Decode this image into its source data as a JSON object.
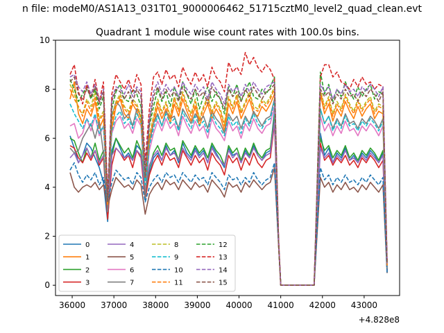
{
  "figure": {
    "suptitle": "n file: modeM0/AS1A13_031T01_9000006462_51715cztM0_level2_quad_clean.evt"
  },
  "chart_data": {
    "type": "line",
    "title": "Quadrant 1 module wise count rates with 100.0s bins.",
    "xlabel": "",
    "ylabel": "",
    "x_offset_label": "+4.828e8",
    "xlim": [
      35600,
      43850
    ],
    "ylim": [
      -0.42,
      10
    ],
    "x_ticks": [
      36000,
      37000,
      38000,
      39000,
      40000,
      41000,
      42000,
      43000
    ],
    "x_tick_labels": [
      "36000",
      "37000",
      "38000",
      "39000",
      "40000",
      "41000",
      "42000",
      "43000"
    ],
    "y_ticks": [
      0,
      2,
      4,
      6,
      8,
      10
    ],
    "y_tick_labels": [
      "0",
      "2",
      "4",
      "6",
      "8",
      "10"
    ],
    "grid": false,
    "legend": {
      "placement": "lower-left",
      "columns": 4
    },
    "x_start": 35950,
    "x_step": 100,
    "gap": {
      "drop_x": 41000,
      "resume_x": 41850,
      "level": 0
    },
    "series": [
      {
        "name": "0",
        "color": "#1f77b4",
        "dash": "solid",
        "seg1": [
          6.1,
          5.6,
          5.0,
          5.3,
          5.8,
          5.6,
          5.2,
          4.8,
          4.2,
          2.6,
          5.5,
          6.0,
          5.6,
          5.2,
          5.4,
          5.1,
          5.7,
          5.5,
          3.6,
          4.6,
          5.2,
          5.4,
          5.1,
          5.7,
          5.3,
          5.5,
          5.0,
          5.8,
          5.4,
          5.2,
          5.6,
          5.3,
          5.5,
          5.0,
          5.7,
          5.4,
          5.1,
          4.8,
          5.6,
          5.3,
          5.4,
          5.0,
          5.5,
          5.2,
          5.7,
          5.3,
          5.1,
          5.4,
          5.5,
          7.1,
          1.8
        ],
        "seg2": [
          6.2,
          5.3,
          5.6,
          5.0,
          5.4,
          5.2,
          5.6,
          5.1,
          5.3,
          5.0,
          5.4,
          5.2,
          5.5,
          5.3,
          5.0,
          5.4,
          0.5
        ]
      },
      {
        "name": "1",
        "color": "#ff7f0e",
        "dash": "solid",
        "seg1": [
          7.6,
          8.3,
          7.0,
          6.6,
          7.2,
          6.9,
          7.5,
          6.4,
          6.8,
          3.2,
          6.4,
          7.3,
          7.6,
          7.0,
          6.8,
          7.4,
          7.1,
          6.6,
          4.3,
          5.8,
          6.6,
          7.3,
          6.8,
          7.2,
          6.6,
          7.4,
          6.9,
          7.6,
          7.1,
          6.7,
          7.3,
          6.5,
          7.0,
          7.4,
          6.8,
          7.2,
          6.9,
          6.3,
          7.4,
          7.0,
          7.5,
          6.8,
          7.2,
          7.6,
          7.0,
          6.9,
          7.3,
          7.1,
          7.4,
          7.8,
          1.6
        ],
        "seg2": [
          7.8,
          7.0,
          7.4,
          6.7,
          7.2,
          6.9,
          7.5,
          7.1,
          6.8,
          7.3,
          6.9,
          7.2,
          7.4,
          6.8,
          7.1,
          7.0,
          0.8
        ]
      },
      {
        "name": "2",
        "color": "#2ca02c",
        "dash": "solid",
        "seg1": [
          6.0,
          5.9,
          5.4,
          5.0,
          5.6,
          5.2,
          5.8,
          5.1,
          5.5,
          2.7,
          5.3,
          6.0,
          5.7,
          5.4,
          5.6,
          5.2,
          5.9,
          5.5,
          3.7,
          4.8,
          5.4,
          5.7,
          5.3,
          5.8,
          5.5,
          5.6,
          5.1,
          5.9,
          5.6,
          5.3,
          5.7,
          5.4,
          5.6,
          5.2,
          5.8,
          5.5,
          5.3,
          4.9,
          5.7,
          5.4,
          5.6,
          5.1,
          5.6,
          5.3,
          5.8,
          5.4,
          5.2,
          5.5,
          5.6,
          6.9,
          1.7
        ],
        "seg2": [
          6.0,
          5.5,
          5.7,
          5.2,
          5.5,
          5.3,
          5.7,
          5.2,
          5.4,
          5.1,
          5.5,
          5.3,
          5.6,
          5.4,
          5.1,
          5.5,
          0.6
        ]
      },
      {
        "name": "3",
        "color": "#d62728",
        "dash": "solid",
        "seg1": [
          5.7,
          5.6,
          5.2,
          5.0,
          5.4,
          5.1,
          5.5,
          4.9,
          5.2,
          2.7,
          4.9,
          5.6,
          5.4,
          5.1,
          5.3,
          4.8,
          5.5,
          5.2,
          3.5,
          4.5,
          5.0,
          5.3,
          4.9,
          5.4,
          5.1,
          5.2,
          4.8,
          5.5,
          5.2,
          4.9,
          5.3,
          5.0,
          5.2,
          4.7,
          5.4,
          5.1,
          4.9,
          4.5,
          5.3,
          5.0,
          5.2,
          4.7,
          5.2,
          4.9,
          5.4,
          5.0,
          4.8,
          5.1,
          5.2,
          6.6,
          1.7
        ],
        "seg2": [
          5.8,
          5.1,
          5.3,
          4.9,
          5.2,
          5.0,
          5.3,
          4.9,
          5.1,
          4.8,
          5.2,
          5.0,
          5.3,
          5.1,
          4.8,
          5.1,
          0.6
        ]
      },
      {
        "name": "4",
        "color": "#9467bd",
        "dash": "solid",
        "seg1": [
          5.2,
          5.4,
          5.0,
          5.3,
          5.6,
          5.2,
          5.5,
          5.0,
          5.3,
          3.0,
          5.3,
          5.6,
          5.4,
          5.2,
          5.3,
          5.1,
          5.5,
          5.3,
          3.8,
          4.9,
          5.3,
          5.5,
          5.1,
          5.6,
          5.3,
          5.4,
          5.1,
          5.6,
          5.3,
          5.1,
          5.5,
          5.2,
          5.4,
          5.0,
          5.6,
          5.3,
          5.1,
          4.9,
          5.5,
          5.2,
          5.4,
          5.0,
          5.4,
          5.2,
          5.6,
          5.3,
          5.1,
          5.3,
          5.4,
          6.7,
          1.7
        ],
        "seg2": [
          5.6,
          5.2,
          5.4,
          5.0,
          5.3,
          5.1,
          5.5,
          5.1,
          5.2,
          5.0,
          5.3,
          5.1,
          5.4,
          5.2,
          5.0,
          5.3,
          0.6
        ]
      },
      {
        "name": "5",
        "color": "#8c564b",
        "dash": "solid",
        "seg1": [
          4.6,
          4.0,
          3.8,
          4.0,
          4.1,
          4.0,
          4.2,
          3.9,
          4.1,
          3.2,
          3.9,
          4.4,
          4.2,
          4.0,
          4.1,
          3.9,
          4.3,
          4.1,
          2.9,
          3.7,
          4.0,
          4.2,
          3.9,
          4.3,
          4.1,
          4.2,
          3.9,
          4.3,
          4.1,
          3.9,
          4.2,
          4.0,
          4.1,
          3.8,
          4.3,
          4.1,
          3.9,
          3.6,
          4.2,
          4.0,
          4.1,
          3.8,
          4.2,
          4.0,
          4.3,
          4.1,
          3.9,
          4.1,
          4.2,
          4.8,
          1.6
        ],
        "seg2": [
          4.4,
          4.0,
          4.2,
          3.8,
          4.1,
          3.9,
          4.2,
          3.9,
          4.0,
          3.8,
          4.1,
          3.9,
          4.2,
          4.0,
          3.8,
          4.1,
          0.5
        ]
      },
      {
        "name": "6",
        "color": "#e377c2",
        "dash": "solid",
        "seg1": [
          6.5,
          6.6,
          6.0,
          6.2,
          6.8,
          6.3,
          6.9,
          6.1,
          6.5,
          3.6,
          6.2,
          6.7,
          6.9,
          6.4,
          6.6,
          6.2,
          6.8,
          6.5,
          3.8,
          5.5,
          6.2,
          6.7,
          6.3,
          6.8,
          6.4,
          6.6,
          6.1,
          6.9,
          6.5,
          6.2,
          6.7,
          6.3,
          6.5,
          6.0,
          6.8,
          6.4,
          6.2,
          5.9,
          6.7,
          6.3,
          6.5,
          6.0,
          6.6,
          6.3,
          6.8,
          6.4,
          6.2,
          6.5,
          6.6,
          7.3,
          1.7
        ],
        "seg2": [
          6.9,
          6.3,
          6.6,
          6.1,
          6.5,
          6.2,
          6.7,
          6.3,
          6.4,
          6.1,
          6.5,
          6.3,
          6.6,
          6.4,
          6.1,
          6.5,
          0.7
        ]
      },
      {
        "name": "7",
        "color": "#7f7f7f",
        "dash": "solid",
        "seg1": [
          5.6,
          5.4,
          5.5,
          6.0,
          6.3,
          6.6,
          6.0,
          6.7,
          5.4,
          3.0,
          6.9,
          7.5,
          7.3,
          6.8,
          7.0,
          6.5,
          7.2,
          6.9,
          3.5,
          5.9,
          6.6,
          7.0,
          6.5,
          7.1,
          6.8,
          6.9,
          6.4,
          7.2,
          6.9,
          6.6,
          7.0,
          6.7,
          6.9,
          6.4,
          7.1,
          6.8,
          6.6,
          6.2,
          7.0,
          6.7,
          6.9,
          6.4,
          6.9,
          6.6,
          7.1,
          6.8,
          6.5,
          6.8,
          6.9,
          7.6,
          1.7
        ],
        "seg2": [
          7.2,
          6.6,
          6.9,
          6.4,
          6.8,
          6.5,
          7.0,
          6.6,
          6.7,
          6.4,
          6.8,
          6.6,
          6.9,
          6.7,
          6.4,
          6.8,
          0.7
        ]
      },
      {
        "name": "8",
        "color": "#bcbd22",
        "dash": "dashed",
        "seg1": [
          8.2,
          7.8,
          7.2,
          7.0,
          7.6,
          7.3,
          7.9,
          6.8,
          7.1,
          3.3,
          6.8,
          7.5,
          7.8,
          7.3,
          7.1,
          7.6,
          7.4,
          6.9,
          4.4,
          6.1,
          6.9,
          7.6,
          7.1,
          7.5,
          6.9,
          7.7,
          7.2,
          7.9,
          7.4,
          7.0,
          7.6,
          6.8,
          7.3,
          7.7,
          7.1,
          7.5,
          7.2,
          6.6,
          7.7,
          7.3,
          7.8,
          7.1,
          7.5,
          7.9,
          7.3,
          7.2,
          7.6,
          7.4,
          7.7,
          8.1,
          1.6
        ],
        "seg2": [
          8.0,
          7.3,
          7.7,
          7.0,
          7.5,
          7.2,
          7.8,
          7.4,
          7.1,
          7.6,
          7.2,
          7.5,
          7.7,
          7.1,
          7.4,
          7.3,
          0.8
        ]
      },
      {
        "name": "9",
        "color": "#17becf",
        "dash": "dashed",
        "seg1": [
          7.4,
          7.0,
          6.7,
          6.4,
          6.8,
          6.5,
          7.0,
          6.2,
          6.5,
          3.4,
          6.3,
          6.9,
          7.1,
          6.6,
          6.8,
          6.4,
          7.0,
          6.7,
          4.1,
          5.7,
          6.4,
          6.9,
          6.5,
          7.0,
          6.6,
          6.8,
          6.3,
          7.1,
          6.7,
          6.4,
          6.9,
          6.5,
          6.7,
          6.2,
          7.0,
          6.6,
          6.4,
          6.1,
          6.9,
          6.5,
          6.7,
          6.2,
          6.8,
          6.5,
          7.0,
          6.6,
          6.4,
          6.7,
          6.8,
          7.5,
          1.7
        ],
        "seg2": [
          7.2,
          6.6,
          6.9,
          6.3,
          6.7,
          6.4,
          6.9,
          6.5,
          6.6,
          6.3,
          6.7,
          6.5,
          6.8,
          6.6,
          6.3,
          6.7,
          0.7
        ]
      },
      {
        "name": "10",
        "color": "#1f77b4",
        "dash": "dashed",
        "seg1": [
          4.7,
          5.0,
          4.5,
          4.2,
          4.5,
          4.3,
          4.6,
          4.1,
          4.4,
          3.4,
          4.2,
          4.7,
          4.5,
          4.3,
          4.4,
          4.1,
          4.6,
          4.4,
          3.4,
          4.0,
          4.3,
          4.5,
          4.2,
          4.6,
          4.4,
          4.5,
          4.2,
          4.6,
          4.4,
          4.2,
          4.5,
          4.3,
          4.4,
          4.1,
          4.6,
          4.4,
          4.2,
          3.9,
          4.5,
          4.3,
          4.4,
          4.1,
          4.4,
          4.2,
          4.6,
          4.3,
          4.1,
          4.3,
          4.4,
          5.0,
          1.6
        ],
        "seg2": [
          4.8,
          4.3,
          4.5,
          4.1,
          4.4,
          4.2,
          4.5,
          4.2,
          4.3,
          4.1,
          4.4,
          4.2,
          4.5,
          4.3,
          4.1,
          4.4,
          0.5
        ]
      },
      {
        "name": "11",
        "color": "#ff7f0e",
        "dash": "dashed",
        "seg1": [
          8.0,
          7.6,
          7.3,
          6.9,
          7.5,
          7.1,
          7.7,
          6.7,
          7.0,
          3.3,
          6.7,
          7.4,
          7.7,
          7.2,
          7.0,
          7.5,
          7.3,
          6.8,
          4.5,
          6.0,
          6.8,
          7.5,
          7.0,
          7.4,
          6.8,
          7.6,
          7.1,
          7.8,
          7.3,
          6.9,
          7.5,
          6.7,
          7.2,
          7.6,
          7.0,
          7.4,
          7.1,
          6.5,
          7.6,
          7.2,
          7.7,
          7.0,
          7.4,
          7.8,
          7.2,
          7.1,
          7.5,
          7.3,
          7.6,
          8.0,
          1.6
        ],
        "seg2": [
          7.9,
          7.2,
          7.6,
          6.9,
          7.4,
          7.1,
          7.7,
          7.3,
          7.0,
          7.5,
          7.1,
          7.4,
          7.6,
          7.0,
          7.3,
          7.2,
          0.8
        ]
      },
      {
        "name": "12",
        "color": "#2ca02c",
        "dash": "dashed",
        "seg1": [
          8.4,
          8.0,
          7.5,
          7.8,
          8.1,
          7.6,
          8.0,
          7.2,
          7.7,
          3.5,
          7.2,
          7.9,
          8.2,
          7.6,
          7.5,
          8.0,
          7.8,
          7.3,
          4.7,
          6.5,
          7.3,
          8.0,
          7.5,
          7.9,
          7.3,
          8.1,
          7.6,
          8.3,
          7.8,
          7.4,
          8.0,
          7.2,
          7.7,
          8.1,
          7.5,
          7.9,
          7.6,
          7.0,
          8.1,
          7.7,
          8.2,
          7.5,
          7.9,
          8.3,
          7.7,
          7.6,
          8.0,
          7.8,
          8.1,
          8.5,
          1.7
        ],
        "seg2": [
          8.7,
          7.8,
          8.2,
          7.5,
          8.0,
          7.7,
          8.3,
          7.9,
          7.6,
          8.1,
          7.7,
          8.0,
          8.2,
          7.6,
          7.9,
          7.8,
          0.9
        ]
      },
      {
        "name": "13",
        "color": "#d62728",
        "dash": "dashed",
        "seg1": [
          8.6,
          9.0,
          7.9,
          7.4,
          8.2,
          7.7,
          8.4,
          7.5,
          8.3,
          3.7,
          7.8,
          8.6,
          8.3,
          8.0,
          8.4,
          7.9,
          8.6,
          8.2,
          5.0,
          7.2,
          8.5,
          8.7,
          8.2,
          8.8,
          8.4,
          8.6,
          8.1,
          8.9,
          8.5,
          8.2,
          8.7,
          8.3,
          8.6,
          8.1,
          8.9,
          8.5,
          8.3,
          7.9,
          9.1,
          8.7,
          8.9,
          8.6,
          9.5,
          9.0,
          9.3,
          8.9,
          8.7,
          9.0,
          8.8,
          8.4,
          1.9
        ],
        "seg2": [
          8.5,
          9.0,
          9.0,
          8.5,
          8.7,
          8.3,
          8.2,
          8.0,
          8.4,
          8.1,
          8.5,
          8.2,
          8.3,
          8.0,
          8.2,
          8.1,
          1.0
        ]
      },
      {
        "name": "14",
        "color": "#9467bd",
        "dash": "dashed",
        "seg1": [
          8.5,
          8.6,
          8.1,
          7.9,
          8.3,
          7.8,
          8.2,
          7.5,
          8.0,
          3.5,
          7.6,
          8.1,
          8.0,
          7.8,
          8.2,
          7.7,
          8.1,
          7.9,
          4.6,
          6.8,
          7.9,
          8.3,
          7.8,
          8.2,
          7.9,
          8.1,
          7.7,
          8.3,
          8.0,
          7.8,
          8.2,
          7.9,
          8.1,
          7.6,
          8.3,
          8.0,
          7.8,
          7.4,
          8.2,
          7.9,
          8.1,
          7.7,
          8.2,
          7.9,
          8.3,
          8.0,
          7.8,
          8.1,
          8.2,
          8.3,
          1.7
        ],
        "seg2": [
          8.2,
          7.9,
          8.1,
          7.6,
          8.0,
          7.8,
          8.2,
          7.9,
          8.0,
          7.7,
          8.1,
          7.9,
          8.2,
          8.0,
          7.7,
          8.1,
          0.9
        ]
      },
      {
        "name": "15",
        "color": "#8c564b",
        "dash": "dashed",
        "seg1": [
          8.3,
          8.5,
          7.8,
          7.6,
          8.0,
          7.7,
          8.1,
          7.4,
          7.9,
          3.4,
          7.5,
          8.0,
          7.9,
          7.6,
          7.9,
          7.5,
          8.0,
          7.7,
          4.4,
          6.6,
          7.7,
          8.1,
          7.6,
          8.0,
          7.7,
          7.9,
          7.5,
          8.1,
          7.8,
          7.6,
          8.0,
          7.7,
          7.9,
          7.4,
          8.1,
          7.8,
          7.6,
          7.2,
          8.0,
          7.7,
          7.9,
          7.5,
          8.0,
          7.7,
          8.1,
          7.8,
          7.6,
          7.9,
          8.0,
          8.2,
          1.7
        ],
        "seg2": [
          8.0,
          7.7,
          7.9,
          7.4,
          7.8,
          7.6,
          8.0,
          7.7,
          7.8,
          7.5,
          7.9,
          7.7,
          8.0,
          7.8,
          7.5,
          7.9,
          0.9
        ]
      }
    ]
  }
}
